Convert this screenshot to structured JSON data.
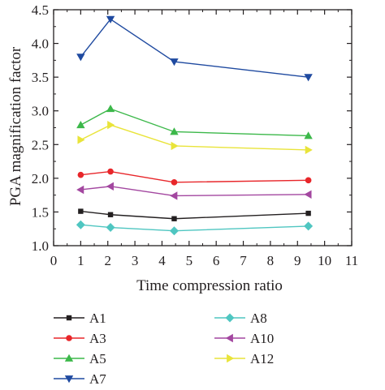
{
  "chart_data": {
    "type": "line",
    "title": "",
    "xlabel": "Time compression ratio",
    "ylabel": "PGA magnification factor",
    "xlim": [
      0,
      11
    ],
    "ylim": [
      1.0,
      4.5
    ],
    "x_ticks": [
      0,
      1,
      2,
      3,
      4,
      5,
      6,
      7,
      8,
      9,
      10,
      11
    ],
    "y_ticks": [
      1.0,
      1.5,
      2.0,
      2.5,
      3.0,
      3.5,
      4.0,
      4.5
    ],
    "x_tick_labels": [
      "0",
      "1",
      "2",
      "3",
      "4",
      "5",
      "6",
      "7",
      "8",
      "9",
      "10",
      "11"
    ],
    "y_tick_labels": [
      "1.0",
      "1.5",
      "2.0",
      "2.5",
      "3.0",
      "3.5",
      "4.0",
      "4.5"
    ],
    "x": [
      1.0,
      2.1,
      4.45,
      9.4
    ],
    "grid": false,
    "legend_position": "bottom",
    "series": [
      {
        "name": "A1",
        "color": "#231f20",
        "marker": "square",
        "values": [
          1.51,
          1.46,
          1.4,
          1.48
        ]
      },
      {
        "name": "A3",
        "color": "#e8262a",
        "marker": "circle",
        "values": [
          2.05,
          2.1,
          1.94,
          1.97
        ]
      },
      {
        "name": "A5",
        "color": "#3cb84a",
        "marker": "triangle-up",
        "values": [
          2.79,
          3.03,
          2.69,
          2.63
        ]
      },
      {
        "name": "A7",
        "color": "#1f4aa0",
        "marker": "triangle-down",
        "values": [
          3.8,
          4.36,
          3.73,
          3.5
        ]
      },
      {
        "name": "A8",
        "color": "#4fc6c1",
        "marker": "diamond",
        "values": [
          1.31,
          1.27,
          1.22,
          1.29
        ]
      },
      {
        "name": "A10",
        "color": "#a347a0",
        "marker": "triangle-left",
        "values": [
          1.83,
          1.88,
          1.74,
          1.76
        ]
      },
      {
        "name": "A12",
        "color": "#e9e43a",
        "marker": "triangle-right",
        "values": [
          2.57,
          2.79,
          2.48,
          2.42
        ]
      }
    ]
  }
}
